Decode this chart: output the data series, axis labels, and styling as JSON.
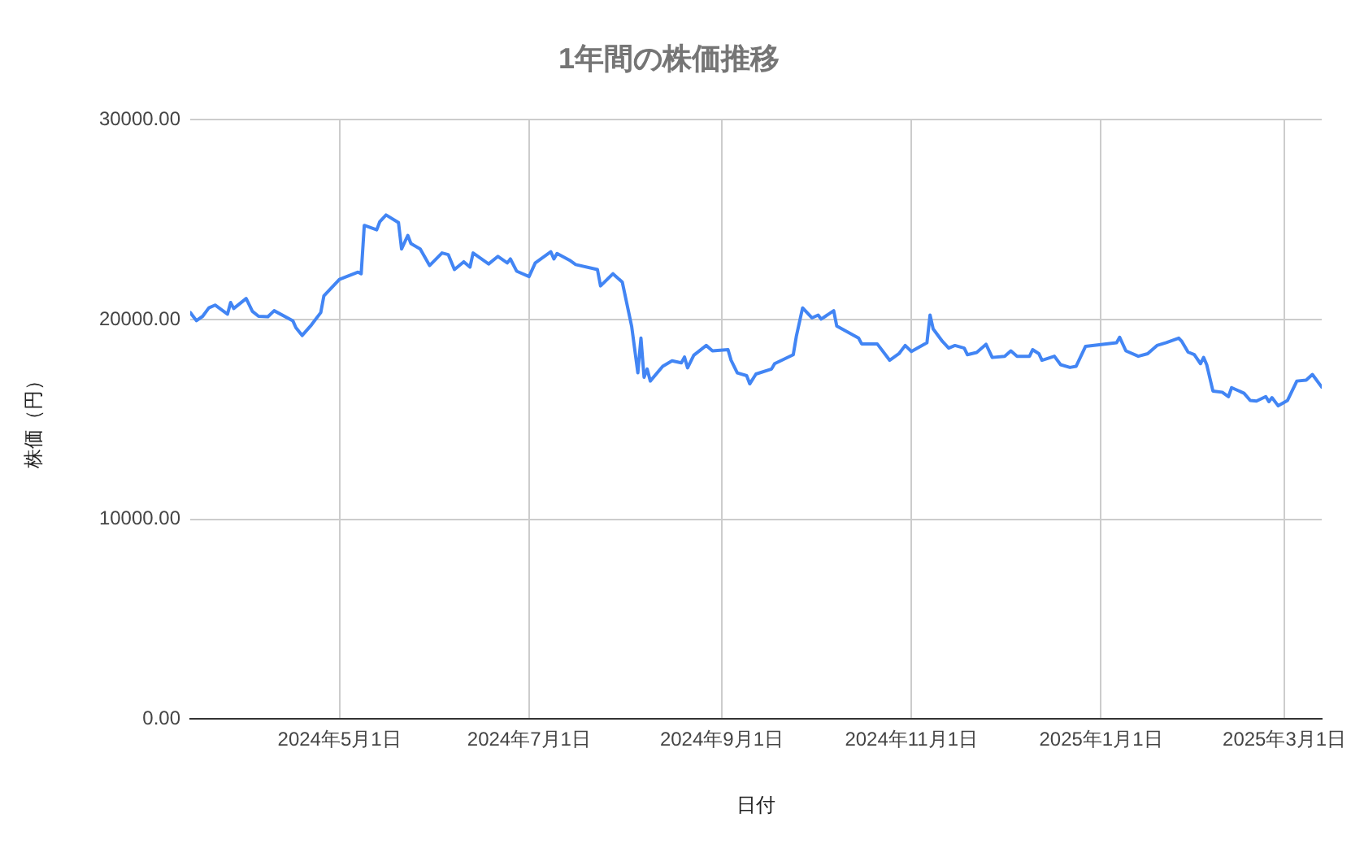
{
  "chart_data": {
    "type": "line",
    "title": "1年間の株価推移",
    "xlabel": "日付",
    "ylabel": "株価（円）",
    "grid": true,
    "legend": false,
    "marker": "none",
    "line_style": "solid",
    "xlim": [
      "2024-03-14",
      "2025-03-13"
    ],
    "xticks": [
      {
        "value": "2024-05-01",
        "label": "2024年5月1日"
      },
      {
        "value": "2024-07-01",
        "label": "2024年7月1日"
      },
      {
        "value": "2024-09-01",
        "label": "2024年9月1日"
      },
      {
        "value": "2024-11-01",
        "label": "2024年11月1日"
      },
      {
        "value": "2025-01-01",
        "label": "2025年1月1日"
      },
      {
        "value": "2025-03-01",
        "label": "2025年3月1日"
      }
    ],
    "ylim": [
      0,
      30000
    ],
    "yticks": [
      {
        "value": 0,
        "label": "0.00"
      },
      {
        "value": 10000,
        "label": "10000.00"
      },
      {
        "value": 20000,
        "label": "20000.00"
      },
      {
        "value": 30000,
        "label": "30000.00"
      }
    ],
    "series": [
      {
        "color": "#4285f4",
        "x": [
          "2024-03-14",
          "2024-03-16",
          "2024-03-18",
          "2024-03-20",
          "2024-03-22",
          "2024-03-26",
          "2024-03-27",
          "2024-03-28",
          "2024-04-01",
          "2024-04-03",
          "2024-04-05",
          "2024-04-08",
          "2024-04-10",
          "2024-04-16",
          "2024-04-17",
          "2024-04-19",
          "2024-04-22",
          "2024-04-25",
          "2024-04-26",
          "2024-05-01",
          "2024-05-07",
          "2024-05-08",
          "2024-05-09",
          "2024-05-13",
          "2024-05-14",
          "2024-05-16",
          "2024-05-20",
          "2024-05-21",
          "2024-05-23",
          "2024-05-24",
          "2024-05-27",
          "2024-05-30",
          "2024-06-03",
          "2024-06-05",
          "2024-06-07",
          "2024-06-10",
          "2024-06-12",
          "2024-06-13",
          "2024-06-18",
          "2024-06-21",
          "2024-06-24",
          "2024-06-25",
          "2024-06-27",
          "2024-07-01",
          "2024-07-03",
          "2024-07-08",
          "2024-07-09",
          "2024-07-10",
          "2024-07-14",
          "2024-07-16",
          "2024-07-23",
          "2024-07-24",
          "2024-07-28",
          "2024-07-31",
          "2024-08-03",
          "2024-08-05",
          "2024-08-06",
          "2024-08-07",
          "2024-08-08",
          "2024-08-09",
          "2024-08-13",
          "2024-08-16",
          "2024-08-19",
          "2024-08-20",
          "2024-08-21",
          "2024-08-23",
          "2024-08-27",
          "2024-08-29",
          "2024-09-03",
          "2024-09-04",
          "2024-09-06",
          "2024-09-09",
          "2024-09-10",
          "2024-09-12",
          "2024-09-17",
          "2024-09-18",
          "2024-09-24",
          "2024-09-25",
          "2024-09-27",
          "2024-09-30",
          "2024-10-02",
          "2024-10-03",
          "2024-10-07",
          "2024-10-08",
          "2024-10-15",
          "2024-10-16",
          "2024-10-21",
          "2024-10-25",
          "2024-10-28",
          "2024-10-30",
          "2024-11-01",
          "2024-11-06",
          "2024-11-07",
          "2024-11-08",
          "2024-11-11",
          "2024-11-13",
          "2024-11-15",
          "2024-11-18",
          "2024-11-19",
          "2024-11-22",
          "2024-11-25",
          "2024-11-27",
          "2024-12-01",
          "2024-12-03",
          "2024-12-05",
          "2024-12-09",
          "2024-12-10",
          "2024-12-12",
          "2024-12-13",
          "2024-12-17",
          "2024-12-19",
          "2024-12-22",
          "2024-12-24",
          "2024-12-27",
          "2025-01-06",
          "2025-01-07",
          "2025-01-09",
          "2025-01-13",
          "2025-01-16",
          "2025-01-19",
          "2025-01-22",
          "2025-01-26",
          "2025-01-27",
          "2025-01-29",
          "2025-01-31",
          "2025-02-02",
          "2025-02-03",
          "2025-02-04",
          "2025-02-06",
          "2025-02-09",
          "2025-02-11",
          "2025-02-12",
          "2025-02-16",
          "2025-02-18",
          "2025-02-20",
          "2025-02-23",
          "2025-02-24",
          "2025-02-25",
          "2025-02-27",
          "2025-03-02",
          "2025-03-05",
          "2025-03-08",
          "2025-03-10",
          "2025-03-13"
        ],
        "values": [
          20350,
          19940,
          20160,
          20580,
          20720,
          20270,
          20850,
          20550,
          21050,
          20410,
          20160,
          20140,
          20440,
          19940,
          19590,
          19200,
          19730,
          20350,
          21180,
          22010,
          22370,
          22290,
          24710,
          24490,
          24900,
          25230,
          24850,
          23530,
          24210,
          23800,
          23530,
          22700,
          23330,
          23250,
          22500,
          22890,
          22620,
          23330,
          22780,
          23160,
          22830,
          23030,
          22420,
          22150,
          22830,
          23390,
          23030,
          23300,
          22970,
          22750,
          22500,
          21680,
          22290,
          21870,
          19670,
          17330,
          19070,
          17110,
          17520,
          16920,
          17660,
          17930,
          17830,
          18120,
          17580,
          18210,
          18700,
          18430,
          18490,
          17960,
          17330,
          17190,
          16780,
          17270,
          17520,
          17790,
          18240,
          19170,
          20580,
          20080,
          20220,
          20020,
          20440,
          19670,
          19070,
          18780,
          18780,
          17960,
          18290,
          18700,
          18400,
          18840,
          20220,
          19530,
          18900,
          18570,
          18700,
          18570,
          18240,
          18350,
          18760,
          18100,
          18160,
          18430,
          18160,
          18160,
          18490,
          18290,
          17960,
          18160,
          17740,
          17600,
          17660,
          18650,
          18840,
          19110,
          18430,
          18160,
          18290,
          18700,
          18840,
          19070,
          18900,
          18370,
          18240,
          17790,
          18100,
          17740,
          16420,
          16360,
          16140,
          16590,
          16310,
          15950,
          15920,
          16140,
          15890,
          16090,
          15680,
          15950,
          16920,
          16970,
          17250,
          16620
        ]
      }
    ]
  }
}
